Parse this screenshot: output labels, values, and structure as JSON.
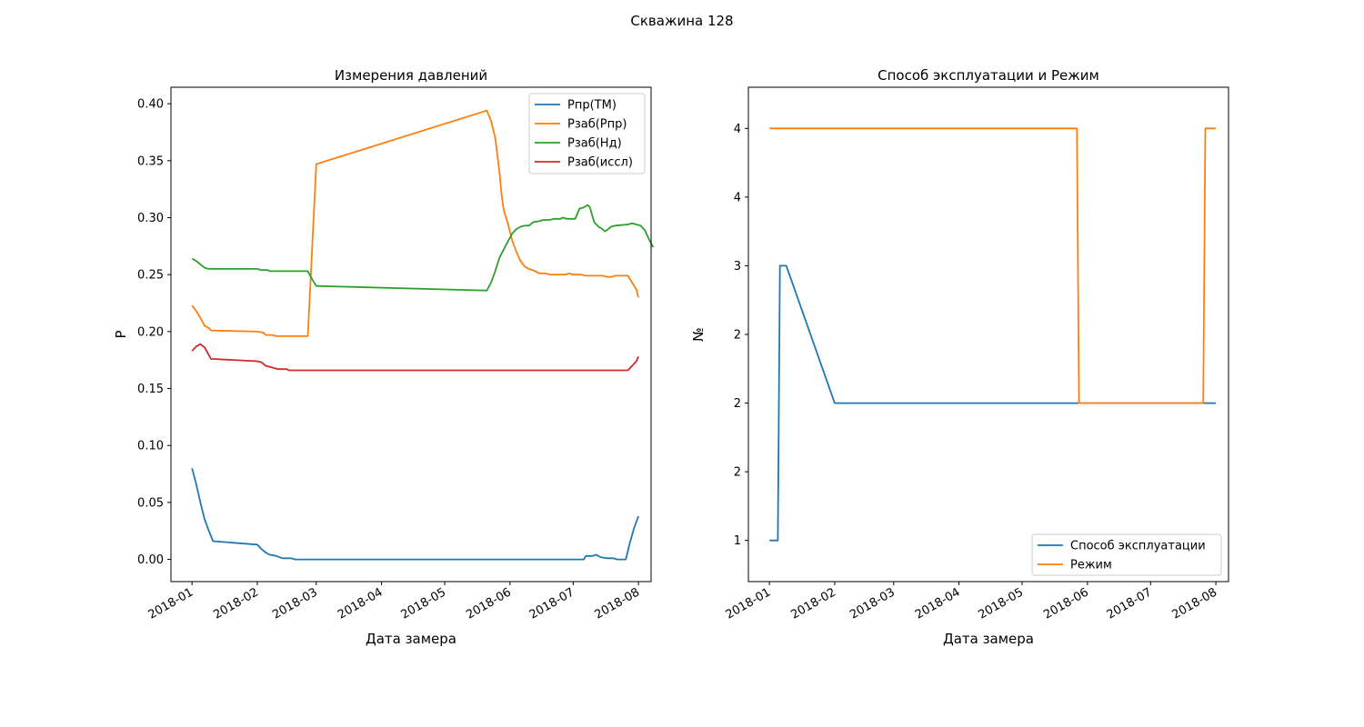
{
  "figure": {
    "suptitle": "Скважина 128"
  },
  "chart_data": [
    {
      "type": "line",
      "title": "Измерения давлений",
      "xlabel": "Дата замера",
      "ylabel": "P",
      "xlim": [
        "2017-12-22",
        "2018-08-07"
      ],
      "ylim": [
        -0.0195,
        0.4145
      ],
      "x_ticks": [
        "2018-01-01",
        "2018-02-01",
        "2018-03-01",
        "2018-04-01",
        "2018-05-01",
        "2018-06-01",
        "2018-07-01",
        "2018-08-01"
      ],
      "x_tick_labels": [
        "2018-01",
        "2018-02",
        "2018-03",
        "2018-04",
        "2018-05",
        "2018-06",
        "2018-07",
        "2018-08"
      ],
      "y_ticks": [
        0.0,
        0.05,
        0.1,
        0.15,
        0.2,
        0.25,
        0.3,
        0.35,
        0.4
      ],
      "y_tick_labels": [
        "0.00",
        "0.05",
        "0.10",
        "0.15",
        "0.20",
        "0.25",
        "0.30",
        "0.35",
        "0.40"
      ],
      "grid": false,
      "legend": "top-right",
      "series": [
        {
          "name": "Pпр(ТМ)",
          "color": "#1f77b4",
          "points": [
            [
              "2018-01-01",
              0.08
            ],
            [
              "2018-01-03",
              0.066
            ],
            [
              "2018-01-05",
              0.05
            ],
            [
              "2018-01-07",
              0.035
            ],
            [
              "2018-01-09",
              0.025
            ],
            [
              "2018-01-11",
              0.016
            ],
            [
              "2018-02-01",
              0.013
            ],
            [
              "2018-02-03",
              0.009
            ],
            [
              "2018-02-05",
              0.006
            ],
            [
              "2018-02-07",
              0.004
            ],
            [
              "2018-02-10",
              0.003
            ],
            [
              "2018-02-13",
              0.001
            ],
            [
              "2018-02-17",
              0.001
            ],
            [
              "2018-02-19",
              0.0
            ],
            [
              "2018-07-06",
              0.0
            ],
            [
              "2018-07-07",
              0.003
            ],
            [
              "2018-07-10",
              0.003
            ],
            [
              "2018-07-12",
              0.004
            ],
            [
              "2018-07-14",
              0.002
            ],
            [
              "2018-07-17",
              0.001
            ],
            [
              "2018-07-20",
              0.001
            ],
            [
              "2018-07-22",
              0.0
            ],
            [
              "2018-07-26",
              0.0
            ],
            [
              "2018-07-28",
              0.015
            ],
            [
              "2018-07-30",
              0.028
            ],
            [
              "2018-08-01",
              0.038
            ]
          ]
        },
        {
          "name": "Pзаб(Pпр)",
          "color": "#ff7f0e",
          "points": [
            [
              "2018-01-01",
              0.223
            ],
            [
              "2018-01-03",
              0.218
            ],
            [
              "2018-01-05",
              0.212
            ],
            [
              "2018-01-07",
              0.205
            ],
            [
              "2018-01-09",
              0.203
            ],
            [
              "2018-01-10",
              0.201
            ],
            [
              "2018-02-01",
              0.2
            ],
            [
              "2018-02-04",
              0.199
            ],
            [
              "2018-02-05",
              0.197
            ],
            [
              "2018-02-08",
              0.197
            ],
            [
              "2018-02-10",
              0.196
            ],
            [
              "2018-02-25",
              0.196
            ],
            [
              "2018-03-01",
              0.347
            ],
            [
              "2018-05-21",
              0.394
            ],
            [
              "2018-05-23",
              0.385
            ],
            [
              "2018-05-25",
              0.37
            ],
            [
              "2018-05-27",
              0.34
            ],
            [
              "2018-05-28",
              0.32
            ],
            [
              "2018-05-29",
              0.307
            ],
            [
              "2018-05-31",
              0.295
            ],
            [
              "2018-06-02",
              0.28
            ],
            [
              "2018-06-04",
              0.27
            ],
            [
              "2018-06-06",
              0.262
            ],
            [
              "2018-06-08",
              0.257
            ],
            [
              "2018-06-10",
              0.255
            ],
            [
              "2018-06-13",
              0.253
            ],
            [
              "2018-06-15",
              0.251
            ],
            [
              "2018-06-18",
              0.251
            ],
            [
              "2018-06-20",
              0.25
            ],
            [
              "2018-06-27",
              0.25
            ],
            [
              "2018-06-29",
              0.251
            ],
            [
              "2018-07-01",
              0.25
            ],
            [
              "2018-07-05",
              0.25
            ],
            [
              "2018-07-07",
              0.249
            ],
            [
              "2018-07-15",
              0.249
            ],
            [
              "2018-07-17",
              0.248
            ],
            [
              "2018-07-19",
              0.248
            ],
            [
              "2018-07-21",
              0.249
            ],
            [
              "2018-07-27",
              0.249
            ],
            [
              "2018-07-29",
              0.243
            ],
            [
              "2018-07-31",
              0.237
            ],
            [
              "2018-08-01",
              0.23
            ]
          ]
        },
        {
          "name": "Pзаб(Нд)",
          "color": "#2ca02c",
          "points": [
            [
              "2018-01-01",
              0.264
            ],
            [
              "2018-01-03",
              0.262
            ],
            [
              "2018-01-05",
              0.259
            ],
            [
              "2018-01-07",
              0.256
            ],
            [
              "2018-01-09",
              0.255
            ],
            [
              "2018-02-01",
              0.255
            ],
            [
              "2018-02-03",
              0.254
            ],
            [
              "2018-02-06",
              0.254
            ],
            [
              "2018-02-07",
              0.253
            ],
            [
              "2018-02-25",
              0.253
            ],
            [
              "2018-02-27",
              0.246
            ],
            [
              "2018-03-01",
              0.24
            ],
            [
              "2018-05-21",
              0.236
            ],
            [
              "2018-05-23",
              0.243
            ],
            [
              "2018-05-25",
              0.253
            ],
            [
              "2018-05-27",
              0.265
            ],
            [
              "2018-05-29",
              0.272
            ],
            [
              "2018-05-31",
              0.279
            ],
            [
              "2018-06-02",
              0.286
            ],
            [
              "2018-06-04",
              0.29
            ],
            [
              "2018-06-06",
              0.292
            ],
            [
              "2018-06-08",
              0.293
            ],
            [
              "2018-06-10",
              0.293
            ],
            [
              "2018-06-12",
              0.296
            ],
            [
              "2018-06-15",
              0.297
            ],
            [
              "2018-06-17",
              0.298
            ],
            [
              "2018-06-20",
              0.298
            ],
            [
              "2018-06-22",
              0.299
            ],
            [
              "2018-06-25",
              0.299
            ],
            [
              "2018-06-26",
              0.3
            ],
            [
              "2018-06-28",
              0.299
            ],
            [
              "2018-07-02",
              0.299
            ],
            [
              "2018-07-04",
              0.308
            ],
            [
              "2018-07-06",
              0.309
            ],
            [
              "2018-07-08",
              0.311
            ],
            [
              "2018-07-09",
              0.309
            ],
            [
              "2018-07-10",
              0.302
            ],
            [
              "2018-07-11",
              0.296
            ],
            [
              "2018-07-13",
              0.292
            ],
            [
              "2018-07-15",
              0.29
            ],
            [
              "2018-07-16",
              0.288
            ],
            [
              "2018-07-17",
              0.289
            ],
            [
              "2018-07-19",
              0.292
            ],
            [
              "2018-07-21",
              0.293
            ],
            [
              "2018-07-27",
              0.294
            ],
            [
              "2018-07-29",
              0.295
            ],
            [
              "2018-07-31",
              0.294
            ],
            [
              "2018-08-02",
              0.293
            ],
            [
              "2018-08-04",
              0.289
            ],
            [
              "2018-08-06",
              0.281
            ],
            [
              "2018-08-08",
              0.274
            ]
          ]
        },
        {
          "name": "Pзаб(иссл)",
          "color": "#d62728",
          "points": [
            [
              "2018-01-01",
              0.183
            ],
            [
              "2018-01-03",
              0.187
            ],
            [
              "2018-01-05",
              0.189
            ],
            [
              "2018-01-07",
              0.186
            ],
            [
              "2018-01-10",
              0.176
            ],
            [
              "2018-02-01",
              0.174
            ],
            [
              "2018-02-03",
              0.173
            ],
            [
              "2018-02-05",
              0.17
            ],
            [
              "2018-02-07",
              0.169
            ],
            [
              "2018-02-09",
              0.168
            ],
            [
              "2018-02-11",
              0.167
            ],
            [
              "2018-02-13",
              0.167
            ],
            [
              "2018-02-15",
              0.167
            ],
            [
              "2018-02-16",
              0.166
            ],
            [
              "2018-07-27",
              0.166
            ],
            [
              "2018-07-29",
              0.17
            ],
            [
              "2018-07-31",
              0.174
            ],
            [
              "2018-08-01",
              0.178
            ]
          ]
        }
      ]
    },
    {
      "type": "line",
      "title": "Способ эксплуатации и Режим",
      "xlabel": "Дата замера",
      "ylabel": "№",
      "xlim": [
        "2017-12-22",
        "2018-08-07"
      ],
      "ylim": [
        0.7,
        4.3
      ],
      "x_ticks": [
        "2018-01-01",
        "2018-02-01",
        "2018-03-01",
        "2018-04-01",
        "2018-05-01",
        "2018-06-01",
        "2018-07-01",
        "2018-08-01"
      ],
      "x_tick_labels": [
        "2018-01",
        "2018-02",
        "2018-03",
        "2018-04",
        "2018-05",
        "2018-06",
        "2018-07",
        "2018-08"
      ],
      "y_ticks": [
        1,
        1.5,
        2,
        2.5,
        3,
        3.5,
        4
      ],
      "y_tick_labels": [
        "1",
        "2",
        "2",
        "2",
        "3",
        "4",
        "4"
      ],
      "grid": false,
      "legend": "bottom-right",
      "series": [
        {
          "name": "Способ эксплуатации",
          "color": "#1f77b4",
          "points": [
            [
              "2018-01-01",
              1
            ],
            [
              "2018-01-05",
              1
            ],
            [
              "2018-01-06",
              3
            ],
            [
              "2018-01-09",
              3
            ],
            [
              "2018-02-01",
              2
            ],
            [
              "2018-08-01",
              2
            ]
          ]
        },
        {
          "name": "Режим",
          "color": "#ff7f0e",
          "points": [
            [
              "2018-01-01",
              4
            ],
            [
              "2018-05-27",
              4
            ],
            [
              "2018-05-28",
              2
            ],
            [
              "2018-07-26",
              2
            ],
            [
              "2018-07-27",
              4
            ],
            [
              "2018-08-01",
              4
            ]
          ]
        }
      ]
    }
  ]
}
